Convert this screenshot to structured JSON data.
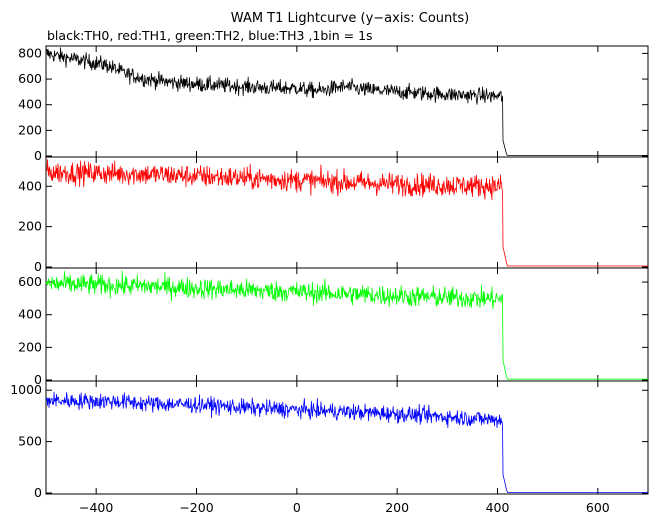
{
  "chart_data": {
    "type": "line",
    "title": "WAM T1 Lightcurve (y−axis: Counts)",
    "subtitle": "black:TH0, red:TH1, green:TH2, blue:TH3 ,1bin = 1s",
    "xlabel": "",
    "ylabel": "",
    "xlim": [
      -500,
      700
    ],
    "x_ticks": [
      -400,
      -200,
      0,
      200,
      400,
      600
    ],
    "x_tick_labels": [
      "−400",
      "−200",
      "0",
      "200",
      "400",
      "600"
    ],
    "grid": false,
    "panels": [
      {
        "name": "TH0",
        "color": "#000000",
        "ylim": [
          0,
          850
        ],
        "y_ticks": [
          0,
          200,
          400,
          600,
          800
        ],
        "y_tick_labels": [
          "0",
          "200",
          "400",
          "600",
          "800"
        ],
        "trend": [
          [
            -500,
            800
          ],
          [
            -450,
            760
          ],
          [
            -380,
            710
          ],
          [
            -340,
            640
          ],
          [
            -300,
            600
          ],
          [
            -250,
            575
          ],
          [
            -200,
            560
          ],
          [
            -100,
            540
          ],
          [
            -50,
            530
          ],
          [
            0,
            530
          ],
          [
            20,
            515
          ],
          [
            50,
            510
          ],
          [
            80,
            535
          ],
          [
            100,
            540
          ],
          [
            130,
            520
          ],
          [
            200,
            500
          ],
          [
            300,
            480
          ],
          [
            410,
            465
          ]
        ],
        "noise": 30,
        "drop_x": 411,
        "tail_x": [
          411,
          418
        ],
        "tail_y": [
          120,
          15
        ],
        "after_value": 5
      },
      {
        "name": "TH1",
        "color": "#ff0000",
        "ylim": [
          0,
          540
        ],
        "y_ticks": [
          0,
          200,
          400
        ],
        "y_tick_labels": [
          "0",
          "200",
          "400"
        ],
        "trend": [
          [
            -500,
            470
          ],
          [
            -300,
            460
          ],
          [
            -100,
            440
          ],
          [
            0,
            430
          ],
          [
            200,
            410
          ],
          [
            410,
            400
          ]
        ],
        "noise": 28,
        "drop_x": 411,
        "tail_x": [
          411,
          418
        ],
        "tail_y": [
          100,
          20
        ],
        "after_value": 5
      },
      {
        "name": "TH2",
        "color": "#00ff00",
        "ylim": [
          0,
          680
        ],
        "y_ticks": [
          0,
          200,
          400,
          600
        ],
        "y_tick_labels": [
          "0",
          "200",
          "400",
          "600"
        ],
        "trend": [
          [
            -500,
            590
          ],
          [
            -300,
            575
          ],
          [
            -100,
            550
          ],
          [
            0,
            540
          ],
          [
            200,
            515
          ],
          [
            410,
            495
          ]
        ],
        "noise": 32,
        "drop_x": 411,
        "tail_x": [
          411,
          418
        ],
        "tail_y": [
          120,
          20
        ],
        "after_value": 5
      },
      {
        "name": "TH3",
        "color": "#0000ff",
        "ylim": [
          0,
          1080
        ],
        "y_ticks": [
          0,
          500,
          1000
        ],
        "y_tick_labels": [
          "0",
          "500",
          "1000"
        ],
        "trend": [
          [
            -500,
            900
          ],
          [
            -350,
            890
          ],
          [
            -300,
            870
          ],
          [
            -200,
            860
          ],
          [
            -100,
            830
          ],
          [
            0,
            810
          ],
          [
            100,
            790
          ],
          [
            200,
            770
          ],
          [
            300,
            740
          ],
          [
            410,
            710
          ]
        ],
        "noise": 40,
        "drop_x": 411,
        "tail_x": [
          411,
          418
        ],
        "tail_y": [
          180,
          30
        ],
        "after_value": 5
      }
    ]
  }
}
